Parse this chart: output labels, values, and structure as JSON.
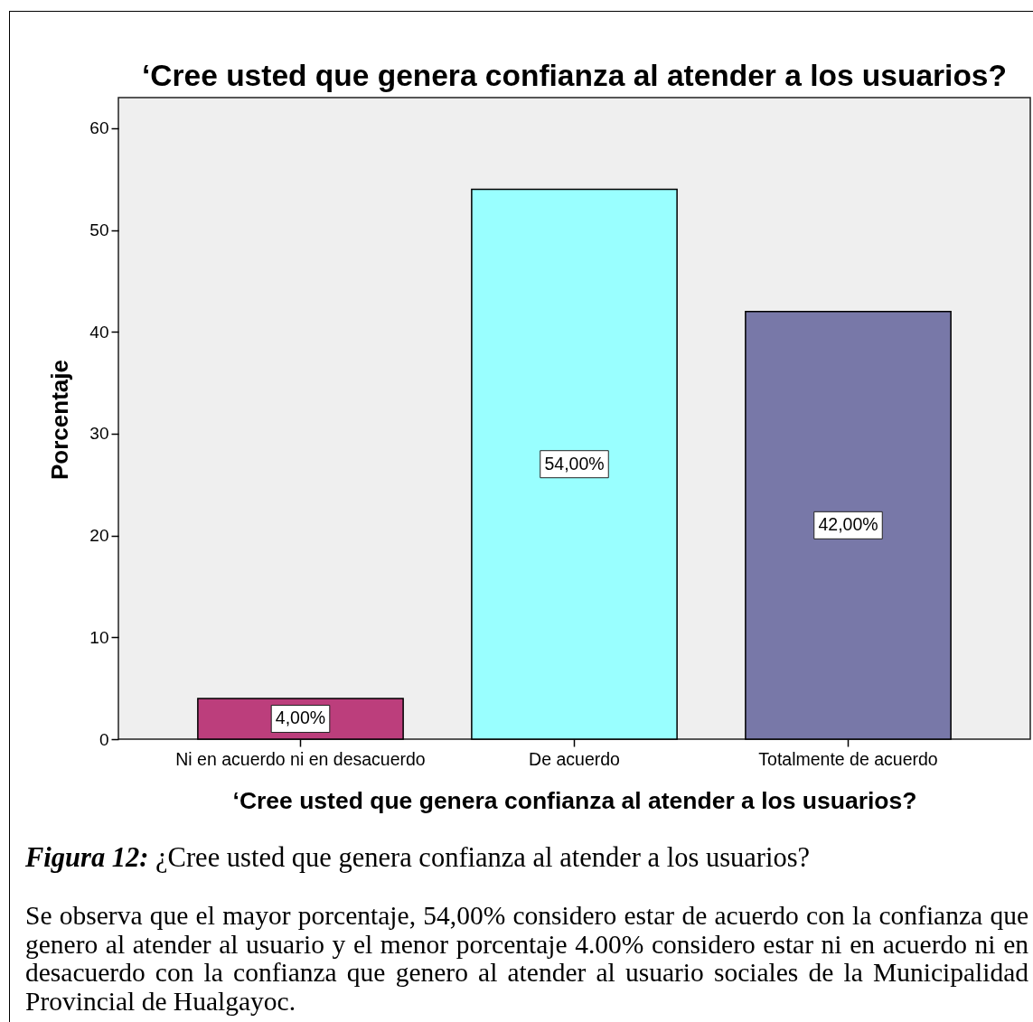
{
  "chart_data": {
    "type": "bar",
    "title": "‘Cree usted que genera confianza al atender a los usuarios?",
    "xlabel": "‘Cree usted que genera confianza al atender a los usuarios?",
    "ylabel": "Porcentaje",
    "categories": [
      "Ni en acuerdo ni en desacuerdo",
      "De acuerdo",
      "Totalmente de acuerdo"
    ],
    "values": [
      4,
      54,
      42
    ],
    "colors": [
      "#bc3e7c",
      "#99ffff",
      "#7878a8"
    ],
    "value_labels": [
      "4,00%",
      "54,00%",
      "42,00%"
    ],
    "ylim": [
      0,
      63
    ],
    "yticks": [
      0,
      10,
      20,
      30,
      40,
      50,
      60
    ],
    "annotations": [
      "Figura 12: ¿Cree usted que genera confianza al atender a los usuarios?",
      "Se observa que el mayor porcentaje, 54,00% considero estar de acuerdo con la confianza que genero al atender al usuario y el menor porcentaje 4.00% considero estar ni en acuerdo ni en desacuerdo con la confianza que genero al atender al usuario sociales de la Municipalidad Provincial de Hualgayoc."
    ]
  }
}
